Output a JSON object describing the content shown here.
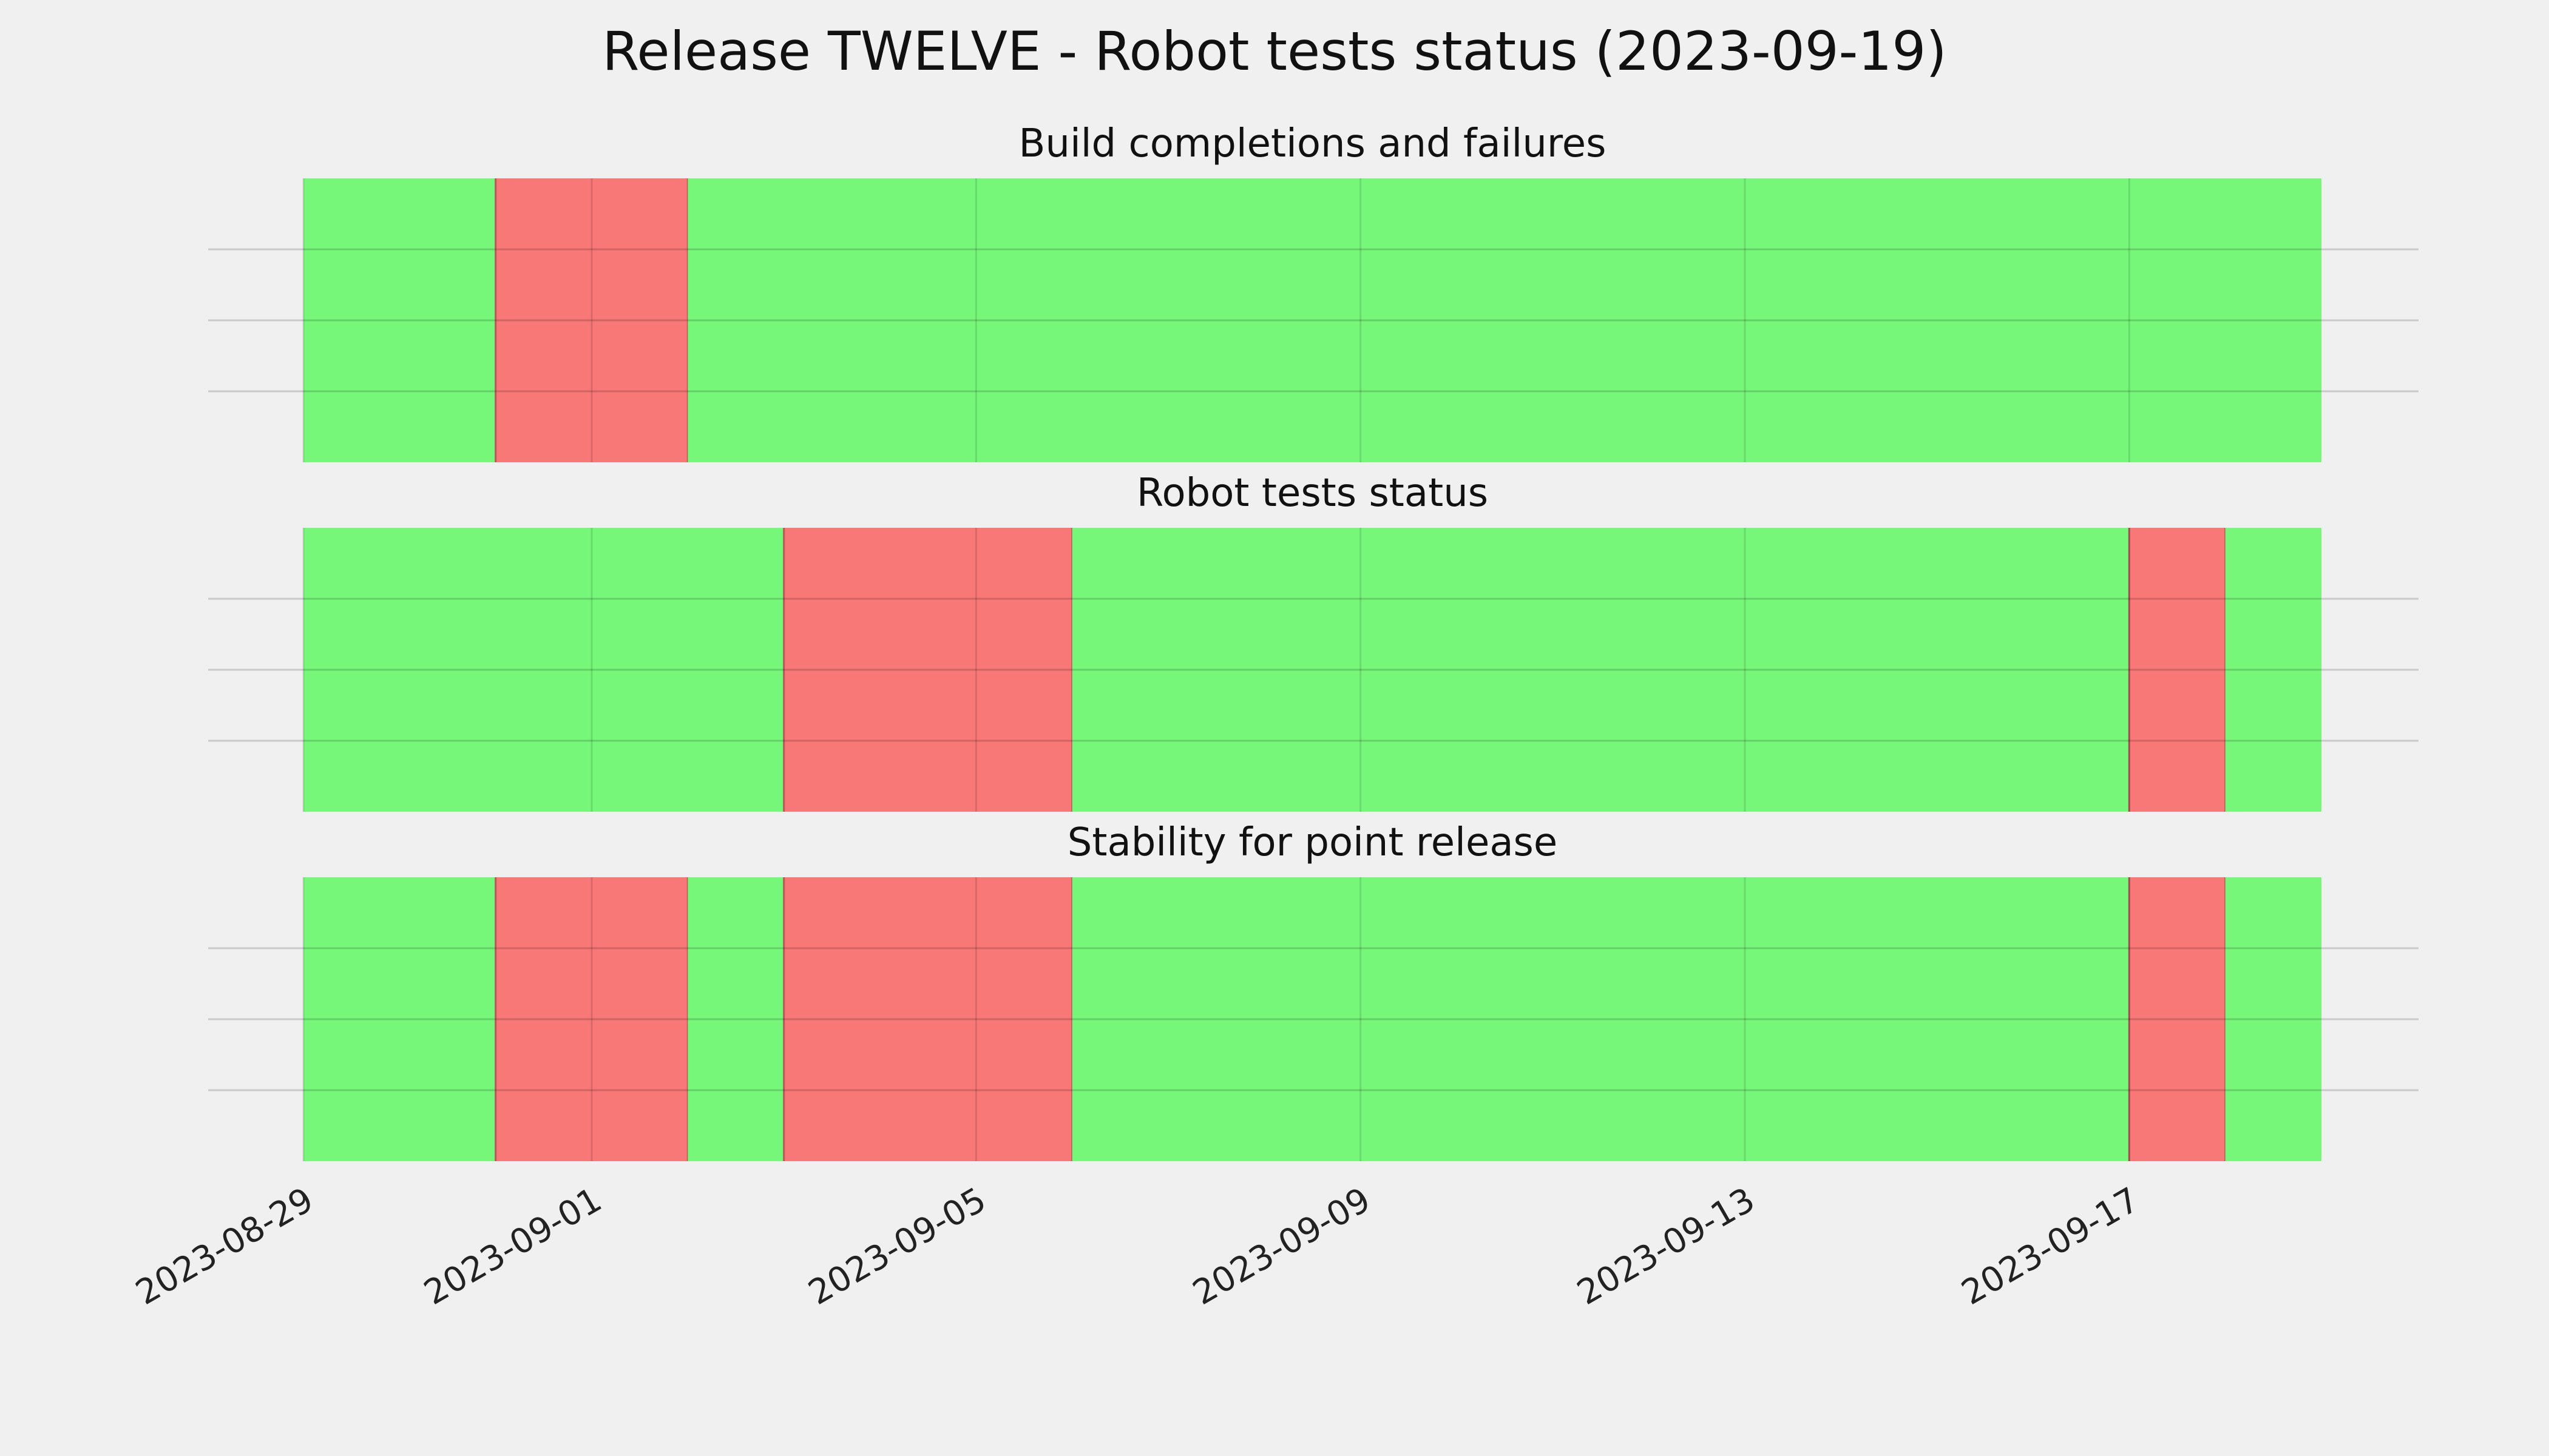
{
  "chart_data": {
    "type": "timeline",
    "title": "Release TWELVE - Robot tests status (2023-09-19)",
    "x_range": [
      "2023-08-29",
      "2023-09-19"
    ],
    "x_ticks": [
      "2023-08-29",
      "2023-09-01",
      "2023-09-05",
      "2023-09-09",
      "2023-09-13",
      "2023-09-17"
    ],
    "grid": true,
    "colors": {
      "pass": "#77f77a",
      "fail": "#f77877"
    },
    "panels": [
      {
        "title": "Build completions and failures",
        "segments": [
          {
            "start": "2023-08-29",
            "end": "2023-08-31",
            "status": "pass"
          },
          {
            "start": "2023-08-31",
            "end": "2023-09-02",
            "status": "fail"
          },
          {
            "start": "2023-09-02",
            "end": "2023-09-19",
            "status": "pass"
          }
        ]
      },
      {
        "title": "Robot tests status",
        "segments": [
          {
            "start": "2023-08-29",
            "end": "2023-09-03",
            "status": "pass"
          },
          {
            "start": "2023-09-03",
            "end": "2023-09-06",
            "status": "fail"
          },
          {
            "start": "2023-09-06",
            "end": "2023-09-17",
            "status": "pass"
          },
          {
            "start": "2023-09-17",
            "end": "2023-09-18",
            "status": "fail"
          },
          {
            "start": "2023-09-18",
            "end": "2023-09-19",
            "status": "pass"
          }
        ]
      },
      {
        "title": "Stability for point release",
        "segments": [
          {
            "start": "2023-08-29",
            "end": "2023-08-31",
            "status": "pass"
          },
          {
            "start": "2023-08-31",
            "end": "2023-09-02",
            "status": "fail"
          },
          {
            "start": "2023-09-02",
            "end": "2023-09-03",
            "status": "pass"
          },
          {
            "start": "2023-09-03",
            "end": "2023-09-06",
            "status": "fail"
          },
          {
            "start": "2023-09-06",
            "end": "2023-09-17",
            "status": "pass"
          },
          {
            "start": "2023-09-17",
            "end": "2023-09-18",
            "status": "fail"
          },
          {
            "start": "2023-09-18",
            "end": "2023-09-19",
            "status": "pass"
          }
        ]
      }
    ]
  }
}
